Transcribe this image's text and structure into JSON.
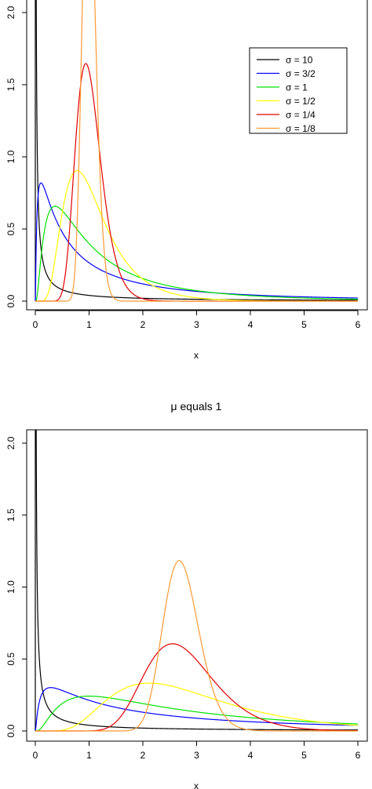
{
  "chart_data": [
    {
      "type": "line",
      "title": "",
      "xlabel": "x",
      "ylabel": "",
      "xlim": [
        0,
        6
      ],
      "ylim": [
        0,
        2
      ],
      "x_ticks": [
        "0",
        "1",
        "2",
        "3",
        "4",
        "5",
        "6"
      ],
      "y_ticks": [
        "0.0",
        "0.5",
        "1.0",
        "1.5",
        "2.0"
      ],
      "grid": false,
      "legend_position": "top-right",
      "series": [
        {
          "name": "σ = 10",
          "color": "#000000",
          "mu": 0,
          "sigma": 10
        },
        {
          "name": "σ = 3/2",
          "color": "#0000ff",
          "mu": 0,
          "sigma": 1.5
        },
        {
          "name": "σ = 1",
          "color": "#00e000",
          "mu": 0,
          "sigma": 1
        },
        {
          "name": "σ = 1/2",
          "color": "#ffff00",
          "mu": 0,
          "sigma": 0.5
        },
        {
          "name": "σ = 1/4",
          "color": "#e00000",
          "mu": 0,
          "sigma": 0.25
        },
        {
          "name": "σ = 1/8",
          "color": "#ff9933",
          "mu": 0,
          "sigma": 0.125
        }
      ]
    },
    {
      "type": "line",
      "title": "μ equals 1",
      "xlabel": "x",
      "ylabel": "",
      "xlim": [
        0,
        6
      ],
      "ylim": [
        0,
        2
      ],
      "x_ticks": [
        "0",
        "1",
        "2",
        "3",
        "4",
        "5",
        "6"
      ],
      "y_ticks": [
        "0.0",
        "0.5",
        "1.0",
        "1.5",
        "2.0"
      ],
      "grid": false,
      "series": [
        {
          "color": "#000000",
          "mu": 1,
          "sigma": 10
        },
        {
          "color": "#0000ff",
          "mu": 1,
          "sigma": 1.5
        },
        {
          "color": "#00e000",
          "mu": 1,
          "sigma": 1
        },
        {
          "color": "#ffff00",
          "mu": 1,
          "sigma": 0.5
        },
        {
          "color": "#e00000",
          "mu": 1,
          "sigma": 0.25
        },
        {
          "color": "#ff9933",
          "mu": 1,
          "sigma": 0.125
        }
      ]
    }
  ]
}
